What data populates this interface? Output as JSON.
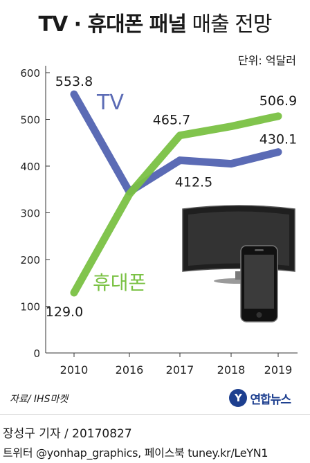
{
  "header": {
    "title_bold": "TV · 휴대폰 패널",
    "title_light": "매출 전망",
    "unit": "단위: 억달러"
  },
  "chart_data": {
    "type": "line",
    "categories": [
      "2010",
      "2016",
      "2017",
      "2018",
      "2019"
    ],
    "series": [
      {
        "name": "TV",
        "values": [
          553.8,
          345,
          412.5,
          405,
          430.1
        ],
        "color": "#5b6bb5",
        "labels": [
          "553.8",
          "",
          "412.5",
          "",
          "430.1"
        ]
      },
      {
        "name": "휴대폰",
        "values": [
          129.0,
          340,
          465.7,
          485,
          506.9
        ],
        "color": "#7ac143",
        "labels": [
          "129.0",
          "",
          "465.7",
          "",
          "506.9"
        ]
      }
    ],
    "yticks": [
      "0",
      "100",
      "200",
      "300",
      "400",
      "500",
      "600"
    ],
    "ylim": [
      0,
      600
    ],
    "grid": false
  },
  "footer": {
    "source": "자료/ IHS마켓",
    "logo_mark": "Y",
    "logo_text": "연합뉴스",
    "byline": "장성구 기자 / 20170827",
    "social": "트위터 @yonhap_graphics, 페이스북 tuney.kr/LeYN1"
  }
}
